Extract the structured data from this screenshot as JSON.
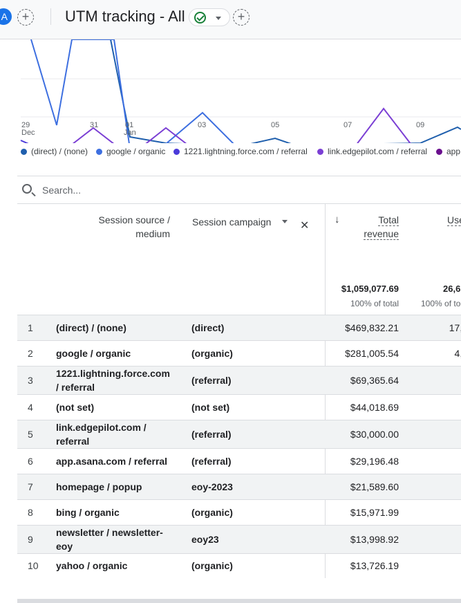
{
  "header": {
    "avatar_letter": "A",
    "add_label": "+",
    "title": "UTM tracking - All",
    "add_comparison_label": "+"
  },
  "chart_data": {
    "type": "line",
    "x_ticks": [
      {
        "label": "29",
        "sub": "Dec"
      },
      {
        "label": "31",
        "sub": ""
      },
      {
        "label": "01",
        "sub": "Jan"
      },
      {
        "label": "03",
        "sub": ""
      },
      {
        "label": "05",
        "sub": ""
      },
      {
        "label": "07",
        "sub": ""
      },
      {
        "label": "09",
        "sub": ""
      }
    ],
    "legend": [
      {
        "name": "(direct) / (none)",
        "color": "#1f5fad"
      },
      {
        "name": "google / organic",
        "color": "#3d6fe0"
      },
      {
        "name": "1221.lightning.force.com / referral",
        "color": "#4a3ad9"
      },
      {
        "name": "link.edgepilot.com / referral",
        "color": "#7b3fd4"
      },
      {
        "name": "app",
        "color": "#6a0f8e"
      }
    ]
  },
  "search": {
    "placeholder": "Search..."
  },
  "table": {
    "columns": {
      "source_line1": "Session source /",
      "source_line2": "medium",
      "campaign": "Session campaign",
      "revenue_line1": "Total",
      "revenue_line2": "revenue",
      "users": "Use"
    },
    "totals": {
      "revenue": "$1,059,077.69",
      "revenue_pct": "100% of total",
      "users": "26,6",
      "users_pct": "100% of to"
    },
    "rows": [
      {
        "idx": "1",
        "src1": "(direct) / (none)",
        "src2": "",
        "campaign": "(direct)",
        "revenue": "$469,832.21",
        "users": "17,5"
      },
      {
        "idx": "2",
        "src1": "google / organic",
        "src2": "",
        "campaign": "(organic)",
        "revenue": "$281,005.54",
        "users": "4,1"
      },
      {
        "idx": "3",
        "src1": "1221.lightning.force.com",
        "src2": "/ referral",
        "campaign": "(referral)",
        "revenue": "$69,365.64",
        "users": ""
      },
      {
        "idx": "4",
        "src1": "(not set)",
        "src2": "",
        "campaign": "(not set)",
        "revenue": "$44,018.69",
        "users": "3"
      },
      {
        "idx": "5",
        "src1": "link.edgepilot.com /",
        "src2": "referral",
        "campaign": "(referral)",
        "revenue": "$30,000.00",
        "users": ""
      },
      {
        "idx": "6",
        "src1": "app.asana.com / referral",
        "src2": "",
        "campaign": "(referral)",
        "revenue": "$29,196.48",
        "users": ""
      },
      {
        "idx": "7",
        "src1": "homepage / popup",
        "src2": "",
        "campaign": "eoy-2023",
        "revenue": "$21,589.60",
        "users": ""
      },
      {
        "idx": "8",
        "src1": "bing / organic",
        "src2": "",
        "campaign": "(organic)",
        "revenue": "$15,971.99",
        "users": "1"
      },
      {
        "idx": "9",
        "src1": "newsletter / newsletter-",
        "src2": "eoy",
        "campaign": "eoy23",
        "revenue": "$13,998.92",
        "users": ""
      },
      {
        "idx": "10",
        "src1": "yahoo / organic",
        "src2": "",
        "campaign": "(organic)",
        "revenue": "$13,726.19",
        "users": ""
      }
    ]
  }
}
